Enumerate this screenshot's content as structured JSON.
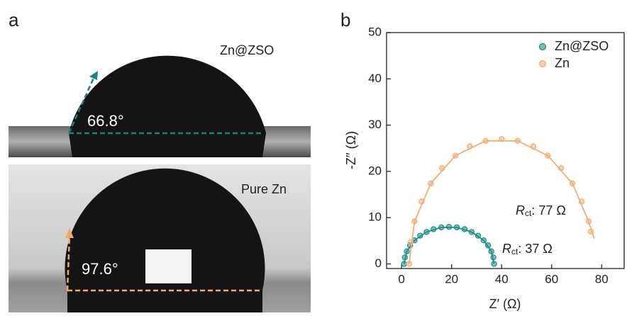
{
  "panel_labels": [
    "a",
    "b"
  ],
  "photos": [
    {
      "label": "Zn@ZSO",
      "angle": "66.8°"
    },
    {
      "label": "Pure Zn",
      "angle": "97.6°"
    }
  ],
  "chart_data": {
    "type": "scatter",
    "x_label": "Z′ (Ω)",
    "y_label": "-Z′′ (Ω)",
    "xlim": [
      -6,
      89
    ],
    "ylim": [
      -1,
      50
    ],
    "xticks": [
      0,
      20,
      40,
      60,
      80
    ],
    "yticks": [
      0,
      10,
      20,
      30,
      40,
      50
    ],
    "legend": "upper right",
    "series": [
      {
        "name": "Zn@ZSO",
        "color": "#1b8c8c",
        "x": [
          1,
          1.3,
          2.1,
          3.4,
          5.2,
          7.4,
          10.0,
          12.8,
          15.9,
          19.0,
          22.1,
          25.2,
          28.0,
          30.6,
          32.8,
          34.6,
          35.9,
          36.7,
          37.0
        ],
        "y": [
          0,
          1.4,
          2.7,
          4.0,
          5.1,
          6.1,
          6.9,
          7.5,
          7.9,
          8.0,
          7.9,
          7.5,
          6.9,
          6.1,
          5.1,
          4.0,
          2.7,
          1.4,
          0
        ],
        "fit": {
          "x": [
            1,
            2.1,
            5.2,
            10,
            15.9,
            22.1,
            28,
            32.8,
            35.9,
            37
          ],
          "y": [
            0,
            2.7,
            5.1,
            6.9,
            7.9,
            7.9,
            6.9,
            5.1,
            2.7,
            0
          ]
        }
      },
      {
        "name": "Zn",
        "color": "#f2ad72",
        "x": [
          3.0,
          3.6,
          5.2,
          8.0,
          11.7,
          16.2,
          21.5,
          27.3,
          33.6,
          40.0,
          46.4,
          52.7,
          58.5,
          63.8,
          68.3,
          72.0,
          74.8,
          75.7
        ],
        "y": [
          0,
          4.7,
          9.2,
          13.5,
          17.4,
          20.7,
          23.4,
          25.4,
          26.6,
          27.0,
          26.6,
          25.4,
          23.4,
          20.7,
          17.4,
          13.5,
          9.2,
          7.0
        ],
        "fit": {
          "x": [
            3,
            5.2,
            11.7,
            21.5,
            33.6,
            46.4,
            58.5,
            68.3,
            74.8,
            77
          ],
          "y": [
            0,
            9.2,
            17.4,
            23.4,
            26.6,
            26.6,
            23.4,
            17.4,
            9.2,
            5.5
          ]
        }
      }
    ],
    "annotations": [
      {
        "symbol": "R",
        "subscript": "ct",
        "text": ": 77 Ω"
      },
      {
        "symbol": "R",
        "subscript": "ct",
        "text": ": 37 Ω"
      }
    ]
  }
}
